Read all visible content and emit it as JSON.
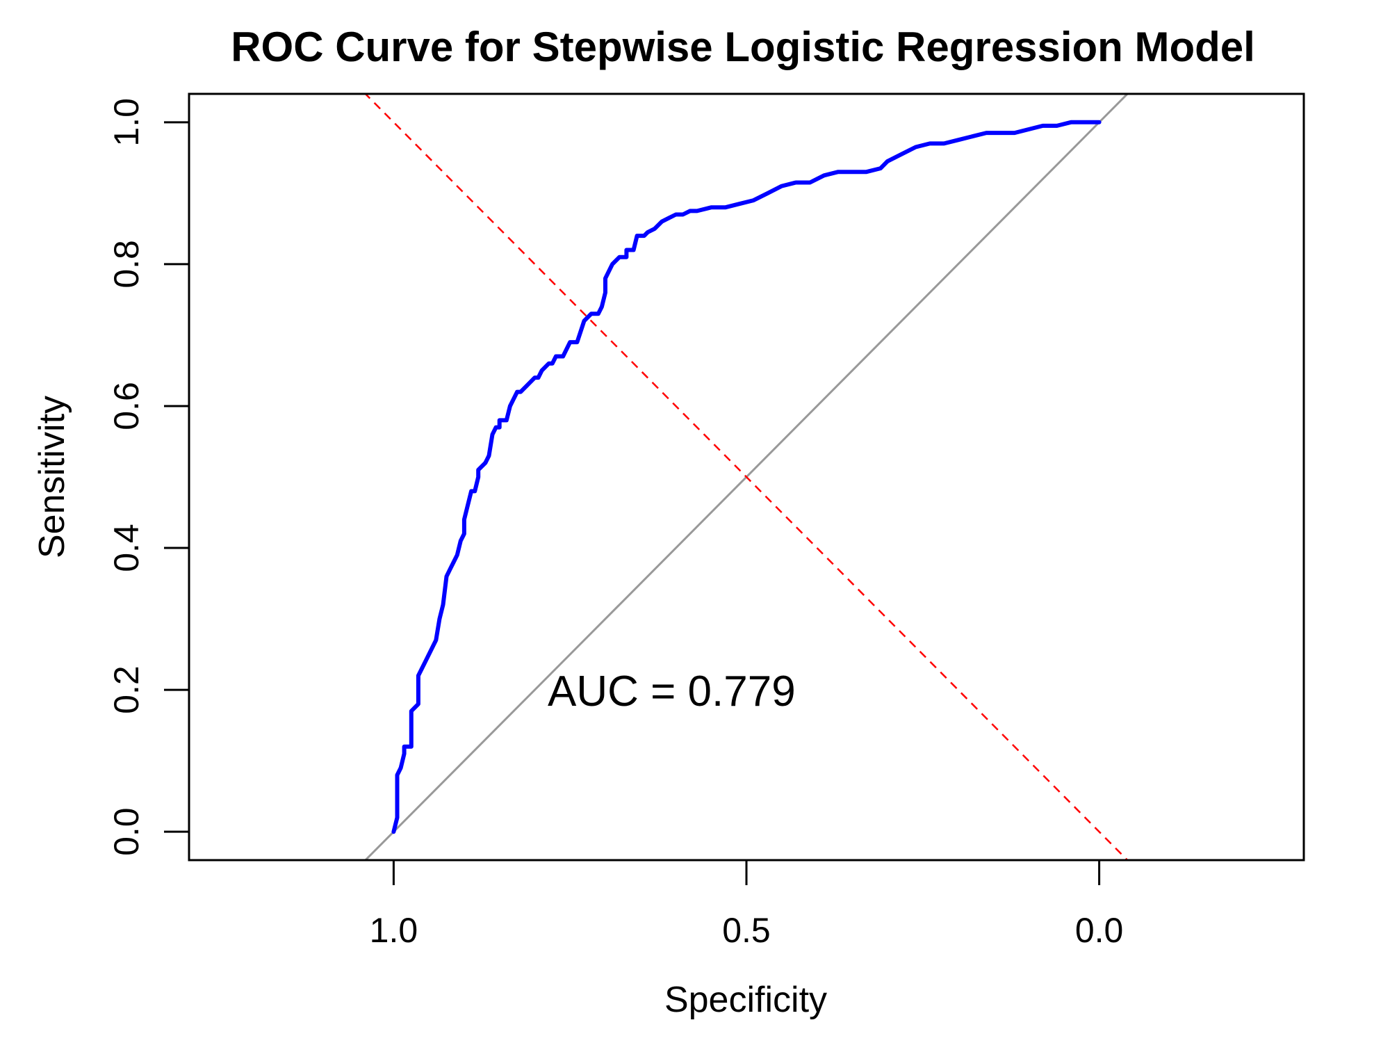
{
  "chart_data": {
    "type": "line",
    "title": "ROC Curve for Stepwise Logistic Regression Model",
    "xlabel": "Specificity",
    "ylabel": "Sensitivity",
    "x_reversed": true,
    "xlim": [
      1.29,
      -0.29
    ],
    "ylim": [
      -0.04,
      1.04
    ],
    "x_ticks": [
      {
        "value": 1.0,
        "label": "1.0"
      },
      {
        "value": 0.5,
        "label": "0.5"
      },
      {
        "value": 0.0,
        "label": "0.0"
      }
    ],
    "y_ticks": [
      {
        "value": 0.0,
        "label": "0.0"
      },
      {
        "value": 0.2,
        "label": "0.2"
      },
      {
        "value": 0.4,
        "label": "0.4"
      },
      {
        "value": 0.6,
        "label": "0.6"
      },
      {
        "value": 0.8,
        "label": "0.8"
      },
      {
        "value": 1.0,
        "label": "1.0"
      }
    ],
    "grid": false,
    "annotation": "AUC = 0.779",
    "auc": 0.779,
    "colors": {
      "roc": "#0000ff",
      "reference": "#999999",
      "crossing": "#ff0000",
      "frame": "#000000"
    },
    "series": [
      {
        "x": [
          1.0,
          0.995,
          0.995,
          0.99,
          0.985,
          0.985,
          0.975,
          0.975,
          0.965,
          0.965,
          0.96,
          0.955,
          0.955,
          0.945,
          0.94,
          0.935,
          0.93,
          0.925,
          0.92,
          0.915,
          0.91,
          0.905,
          0.9,
          0.9,
          0.89,
          0.885,
          0.88,
          0.88,
          0.87,
          0.865,
          0.86,
          0.855,
          0.85,
          0.85,
          0.84,
          0.835,
          0.83,
          0.825,
          0.82,
          0.81,
          0.8,
          0.795,
          0.79,
          0.78,
          0.775,
          0.77,
          0.76,
          0.75,
          0.74,
          0.73,
          0.72,
          0.71,
          0.705,
          0.7,
          0.7,
          0.69,
          0.68,
          0.67,
          0.67,
          0.66,
          0.655,
          0.65,
          0.645,
          0.64,
          0.63,
          0.62,
          0.61,
          0.6,
          0.59,
          0.58,
          0.57,
          0.55,
          0.53,
          0.51,
          0.49,
          0.47,
          0.45,
          0.43,
          0.41,
          0.39,
          0.37,
          0.35,
          0.33,
          0.31,
          0.3,
          0.28,
          0.27,
          0.26,
          0.24,
          0.22,
          0.2,
          0.18,
          0.16,
          0.14,
          0.12,
          0.1,
          0.08,
          0.06,
          0.04,
          0.02,
          0.0
        ],
        "y": [
          0.0,
          0.02,
          0.08,
          0.09,
          0.11,
          0.12,
          0.12,
          0.17,
          0.18,
          0.22,
          0.23,
          0.24,
          0.24,
          0.26,
          0.27,
          0.3,
          0.32,
          0.36,
          0.37,
          0.38,
          0.39,
          0.41,
          0.42,
          0.44,
          0.48,
          0.48,
          0.5,
          0.51,
          0.52,
          0.53,
          0.56,
          0.57,
          0.57,
          0.58,
          0.58,
          0.6,
          0.61,
          0.62,
          0.62,
          0.63,
          0.64,
          0.64,
          0.65,
          0.66,
          0.66,
          0.67,
          0.67,
          0.69,
          0.69,
          0.72,
          0.73,
          0.73,
          0.74,
          0.76,
          0.78,
          0.8,
          0.81,
          0.81,
          0.82,
          0.82,
          0.84,
          0.84,
          0.84,
          0.845,
          0.85,
          0.86,
          0.865,
          0.87,
          0.87,
          0.875,
          0.875,
          0.88,
          0.88,
          0.885,
          0.89,
          0.9,
          0.91,
          0.915,
          0.915,
          0.925,
          0.93,
          0.93,
          0.93,
          0.935,
          0.945,
          0.955,
          0.96,
          0.965,
          0.97,
          0.97,
          0.975,
          0.98,
          0.985,
          0.985,
          0.985,
          0.99,
          0.995,
          0.995,
          1.0,
          1.0,
          1.0
        ]
      }
    ]
  }
}
